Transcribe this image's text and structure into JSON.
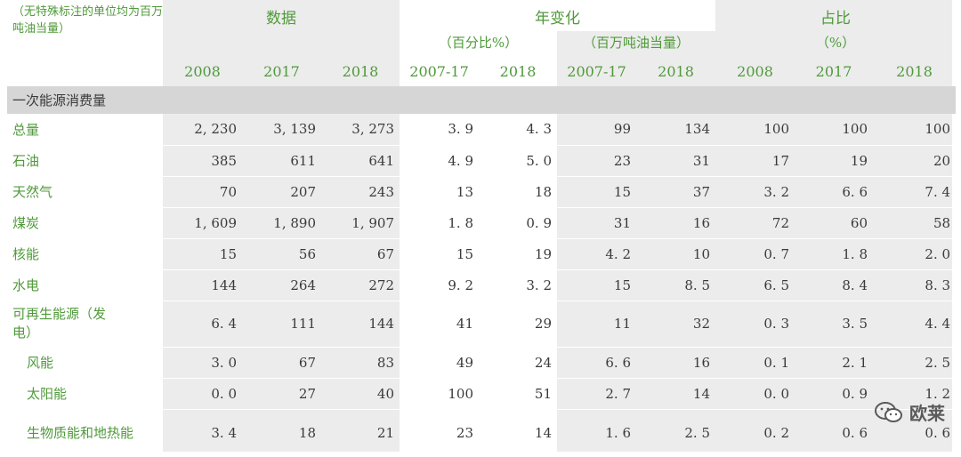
{
  "unit_note": "（无特殊标注的单位均为百万吨油当量）",
  "groups": {
    "data": "数据",
    "annual_change": "年变化",
    "annual_change_pct": "（百分比%）",
    "annual_change_mtoe": "（百万吨油当量）",
    "share": "占比",
    "share_unit": "（%）"
  },
  "years": [
    "2008",
    "2017",
    "2018",
    "2007-17",
    "2018",
    "2007-17",
    "2018",
    "2008",
    "2017",
    "2018"
  ],
  "section_title": "一次能源消费量",
  "rows": [
    {
      "label": "总量",
      "values": [
        "2, 230",
        "3, 139",
        "3, 273",
        "3. 9",
        "4. 3",
        "99",
        "134",
        "100",
        "100",
        "100"
      ]
    },
    {
      "label": "石油",
      "values": [
        "385",
        "611",
        "641",
        "4. 9",
        "5. 0",
        "23",
        "31",
        "17",
        "19",
        "20"
      ]
    },
    {
      "label": "天然气",
      "values": [
        "70",
        "207",
        "243",
        "13",
        "18",
        "15",
        "37",
        "3. 2",
        "6. 6",
        "7. 4"
      ]
    },
    {
      "label": "煤炭",
      "values": [
        "1, 609",
        "1, 890",
        "1, 907",
        "1. 8",
        "0. 9",
        "31",
        "16",
        "72",
        "60",
        "58"
      ]
    },
    {
      "label": "核能",
      "values": [
        "15",
        "56",
        "67",
        "15",
        "19",
        "4. 2",
        "10",
        "0. 7",
        "1. 8",
        "2. 0"
      ]
    },
    {
      "label": "水电",
      "values": [
        "144",
        "264",
        "272",
        "9. 2",
        "3. 2",
        "15",
        "8. 5",
        "6. 5",
        "8. 4",
        "8. 3"
      ]
    },
    {
      "label": "可再生能源（发电）",
      "values": [
        "6. 4",
        "111",
        "144",
        "41",
        "29",
        "11",
        "32",
        "0. 3",
        "3. 5",
        "4. 4"
      ]
    },
    {
      "label": "风能",
      "values": [
        "3. 0",
        "67",
        "83",
        "49",
        "24",
        "6. 6",
        "16",
        "0. 1",
        "2. 1",
        "2. 5"
      ]
    },
    {
      "label": "太阳能",
      "values": [
        "0. 0",
        "27",
        "40",
        "100",
        "51",
        "2. 7",
        "14",
        "0. 0",
        "0. 9",
        "1. 2"
      ]
    },
    {
      "label": "生物质能和地热能",
      "values": [
        "3. 4",
        "18",
        "21",
        "23",
        "14",
        "1. 6",
        "2. 5",
        "0. 2",
        "0. 6",
        "0. 6"
      ]
    }
  ],
  "watermark": "欧莱",
  "colors": {
    "accent": "#4f9a3a",
    "shade": "#ececec",
    "section": "#d6d6d6"
  }
}
